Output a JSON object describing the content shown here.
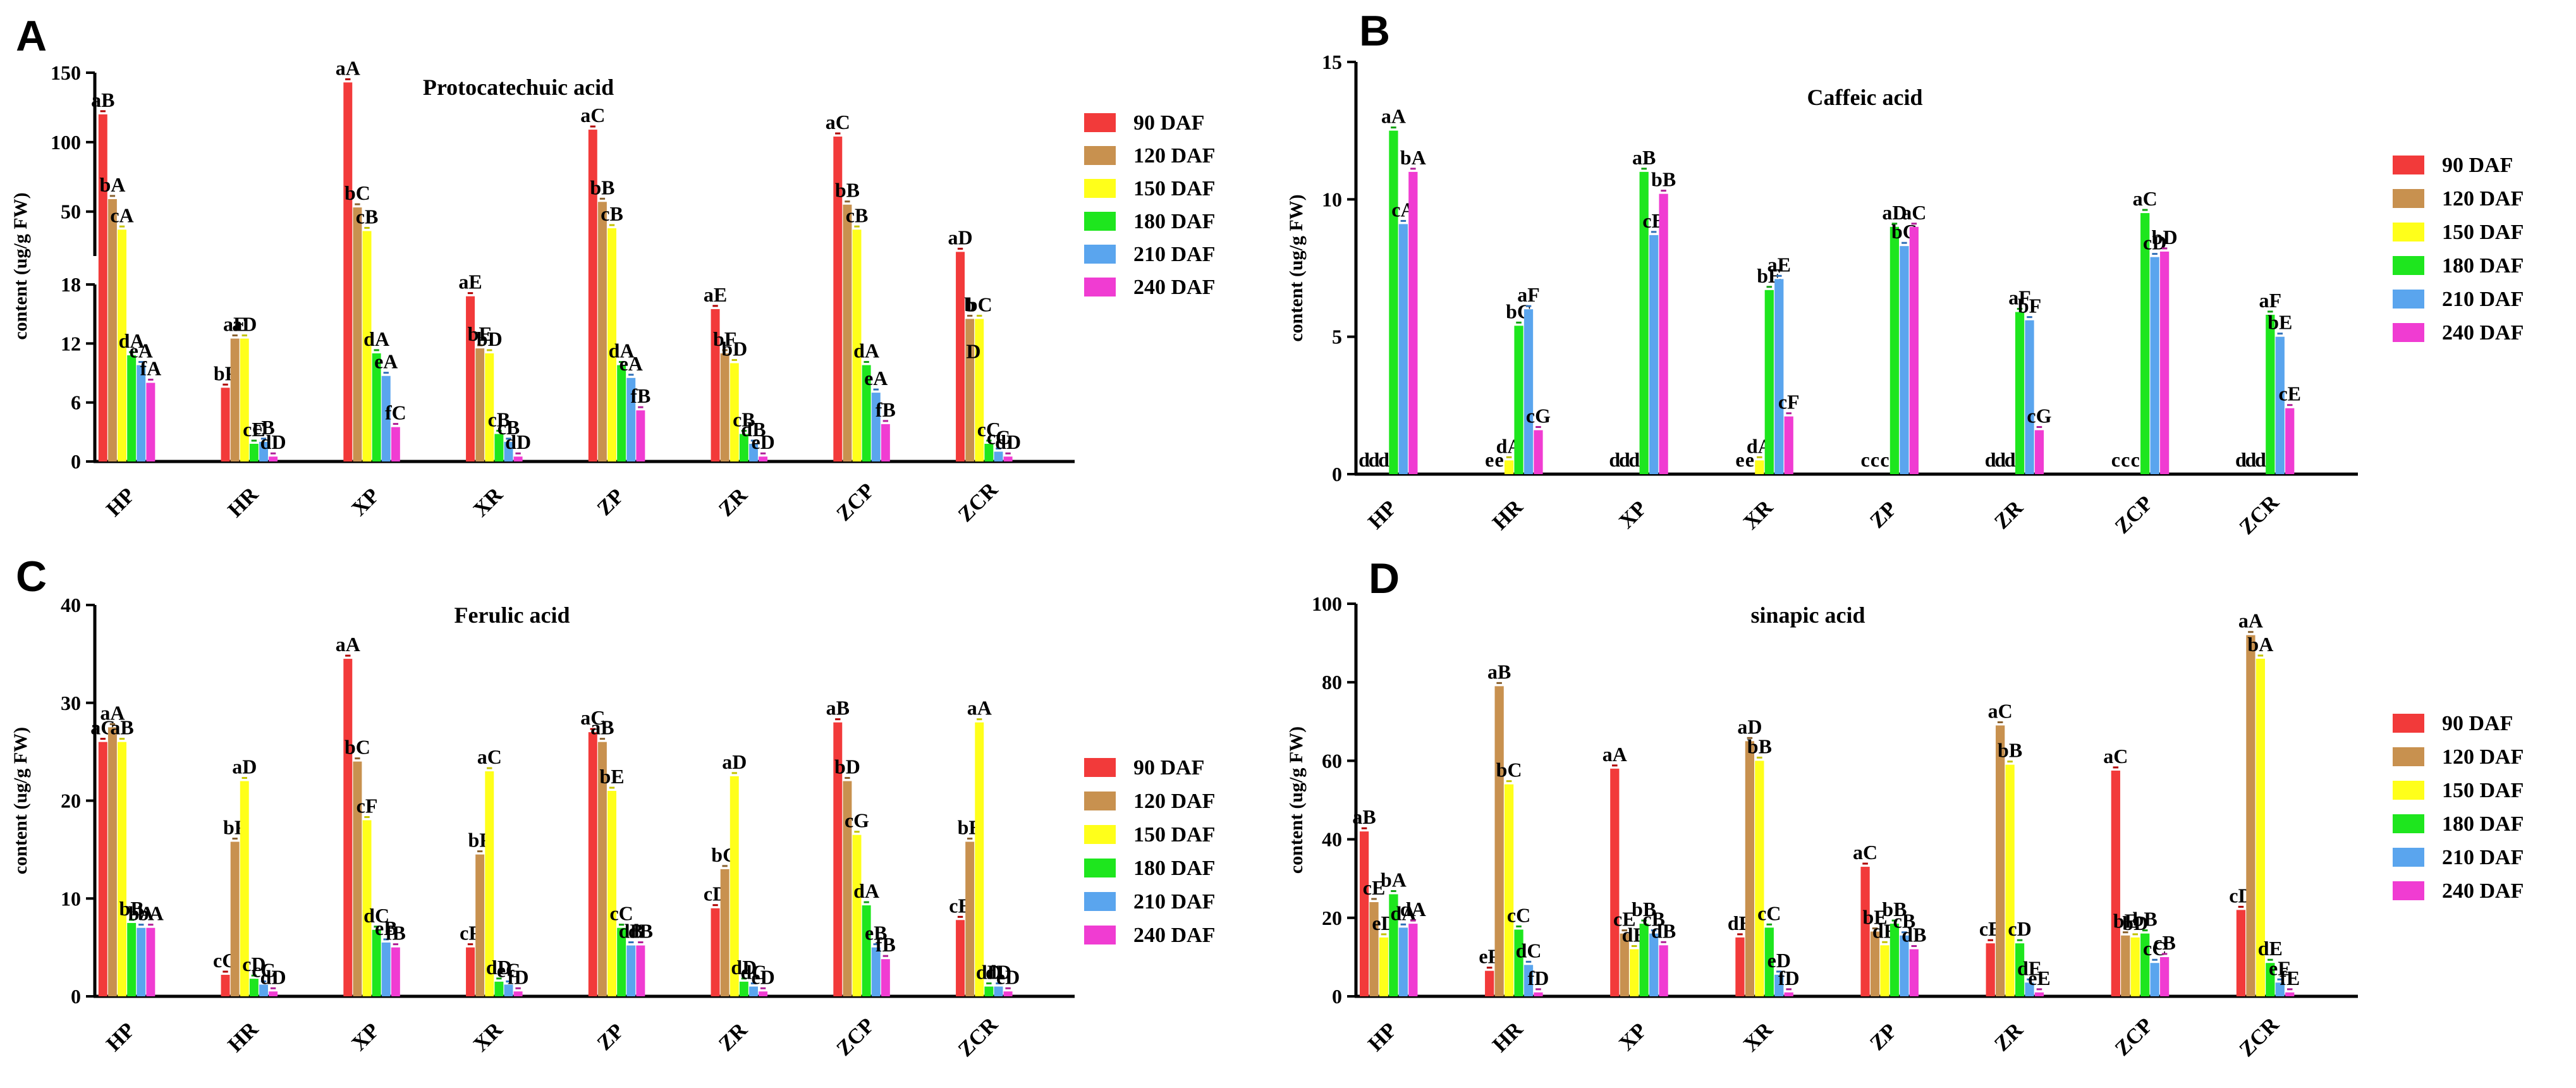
{
  "chart_data": [
    {
      "panel": "A",
      "type": "bar",
      "title": "Protocatechuic acid",
      "ylabel": "content (ug/g FW)",
      "y_axis": "broken",
      "ylim_lower": [
        0,
        18
      ],
      "ylim_upper": [
        18,
        150
      ],
      "yticks_lower": [
        "0",
        "6",
        "12",
        "18"
      ],
      "yticks_upper": [
        "50",
        "100",
        "150"
      ],
      "legend": [
        "90 DAF",
        "120 DAF",
        "150 DAF",
        "180 DAF",
        "210 DAF",
        "240 DAF"
      ],
      "categories": [
        "HP",
        "HR",
        "XP",
        "XR",
        "ZP",
        "ZR",
        "ZCP",
        "ZCR"
      ],
      "series": [
        {
          "name": "90 DAF",
          "values": [
            120,
            7.5,
            143,
            16.8,
            109,
            15.5,
            104,
            21
          ]
        },
        {
          "name": "120 DAF",
          "values": [
            59,
            12.5,
            53,
            11.5,
            57,
            11,
            55,
            14.5
          ]
        },
        {
          "name": "150 DAF",
          "values": [
            37,
            12.5,
            36,
            11,
            38,
            10,
            37,
            14.5
          ]
        },
        {
          "name": "180 DAF",
          "values": [
            10.8,
            1.8,
            11,
            2.8,
            9.8,
            2.8,
            9.8,
            1.8
          ]
        },
        {
          "name": "210 DAF",
          "values": [
            9.8,
            2,
            8.7,
            2,
            8.5,
            1.8,
            7,
            1
          ]
        },
        {
          "name": "240 DAF",
          "values": [
            8,
            0.5,
            3.5,
            0.5,
            5.2,
            0.5,
            3.8,
            0.5
          ]
        }
      ],
      "labels": [
        [
          "aB",
          "bF",
          "aA",
          "aE",
          "aC",
          "aE",
          "aC",
          "aD"
        ],
        [
          "bA",
          "aE",
          "bC",
          "bE",
          "bB",
          "bF",
          "bB",
          "b"
        ],
        [
          "cA",
          "aD",
          "cB",
          "bD",
          "cB",
          "bD",
          "cB",
          "bC"
        ],
        [
          "dA",
          "cE",
          "dA",
          "cB",
          "dA",
          "cB",
          "dA",
          "cC"
        ],
        [
          "eA",
          "cB",
          "eA",
          "cB",
          "eA",
          "dB",
          "eA",
          "cC"
        ],
        [
          "fA",
          "dD",
          "fC",
          "dD",
          "fB",
          "eD",
          "fB",
          "dD"
        ]
      ],
      "extra_labels": [
        {
          "category": "ZCR",
          "text": "D"
        }
      ]
    },
    {
      "panel": "B",
      "type": "bar",
      "title": "Caffeic acid",
      "ylabel": "content (ug/g FW)",
      "ylim": [
        0,
        15
      ],
      "yticks": [
        "0",
        "5",
        "10",
        "15"
      ],
      "legend": [
        "90 DAF",
        "120 DAF",
        "150 DAF",
        "180 DAF",
        "210 DAF",
        "240 DAF"
      ],
      "categories": [
        "HP",
        "HR",
        "XP",
        "XR",
        "ZP",
        "ZR",
        "ZCP",
        "ZCR"
      ],
      "series": [
        {
          "name": "90 DAF",
          "values": [
            0,
            0,
            0,
            0,
            0,
            0,
            0,
            0
          ]
        },
        {
          "name": "120 DAF",
          "values": [
            0,
            0,
            0,
            0,
            0,
            0,
            0,
            0
          ]
        },
        {
          "name": "150 DAF",
          "values": [
            0,
            0.5,
            0,
            0.5,
            0,
            0,
            0,
            0
          ]
        },
        {
          "name": "180 DAF",
          "values": [
            12.5,
            5.4,
            11,
            6.7,
            9,
            5.9,
            9.5,
            5.8
          ]
        },
        {
          "name": "210 DAF",
          "values": [
            9.1,
            6,
            8.7,
            7.1,
            8.3,
            5.6,
            7.9,
            5
          ]
        },
        {
          "name": "240 DAF",
          "values": [
            11,
            1.6,
            10.2,
            2.1,
            9,
            1.6,
            8.1,
            2.4
          ]
        }
      ],
      "labels": [
        [
          "d",
          "e",
          "d",
          "e",
          "c",
          "d",
          "c",
          "d"
        ],
        [
          "d",
          "e",
          "d",
          "e",
          "c",
          "d",
          "c",
          "d"
        ],
        [
          "d",
          "dA",
          "d",
          "dA",
          "c",
          "d",
          "c",
          "d"
        ],
        [
          "aA",
          "bC",
          "aB",
          "bE",
          "aD",
          "aF",
          "aC",
          "aF"
        ],
        [
          "cA",
          "aF",
          "cB",
          "aE",
          "bC",
          "bF",
          "cD",
          "bE"
        ],
        [
          "bA",
          "cG",
          "bB",
          "cF",
          "aC",
          "cG",
          "bD",
          "cE"
        ]
      ]
    },
    {
      "panel": "C",
      "type": "bar",
      "title": "Ferulic acid",
      "ylabel": "content (ug/g FW)",
      "ylim": [
        0,
        40
      ],
      "yticks": [
        "0",
        "10",
        "20",
        "30",
        "40"
      ],
      "legend": [
        "90 DAF",
        "120 DAF",
        "150 DAF",
        "180 DAF",
        "210 DAF",
        "240 DAF"
      ],
      "categories": [
        "HP",
        "HR",
        "XP",
        "XR",
        "ZP",
        "ZR",
        "ZCP",
        "ZCR"
      ],
      "series": [
        {
          "name": "90 DAF",
          "values": [
            26,
            2.2,
            34.5,
            5,
            27,
            9,
            28,
            7.8
          ]
        },
        {
          "name": "120 DAF",
          "values": [
            27.5,
            15.8,
            24,
            14.5,
            26,
            13,
            22,
            15.8
          ]
        },
        {
          "name": "150 DAF",
          "values": [
            26,
            22,
            18,
            23,
            21,
            22.5,
            16.5,
            28
          ]
        },
        {
          "name": "180 DAF",
          "values": [
            7.5,
            1.8,
            6.8,
            1.5,
            7,
            1.5,
            9.3,
            1
          ]
        },
        {
          "name": "210 DAF",
          "values": [
            7,
            1.2,
            5.5,
            1.2,
            5.2,
            1,
            5,
            1
          ]
        },
        {
          "name": "240 DAF",
          "values": [
            7,
            0.5,
            5,
            0.5,
            5.2,
            0.5,
            3.8,
            0.5
          ]
        }
      ],
      "labels": [
        [
          "aC",
          "cG",
          "aA",
          "cF",
          "aC",
          "cD",
          "aB",
          "cE"
        ],
        [
          "aA",
          "bF",
          "bC",
          "bF",
          "aB",
          "bG",
          "bD",
          "bE"
        ],
        [
          "aB",
          "aD",
          "cF",
          "aC",
          "bE",
          "aD",
          "cG",
          "aA"
        ],
        [
          "bB",
          "cD",
          "dC",
          "dD",
          "cC",
          "dD",
          "dA",
          "dD"
        ],
        [
          "bA",
          "cC",
          "eB",
          "eC",
          "dB",
          "dC",
          "eB",
          "dD"
        ],
        [
          "bA",
          "dD",
          "fB",
          "fD",
          "dB",
          "eD",
          "fB",
          "eD"
        ]
      ]
    },
    {
      "panel": "D",
      "type": "bar",
      "title": "sinapic acid",
      "ylabel": "content (ug/g FW)",
      "ylim": [
        0,
        100
      ],
      "yticks": [
        "0",
        "20",
        "40",
        "60",
        "80",
        "100"
      ],
      "legend": [
        "90 DAF",
        "120 DAF",
        "150 DAF",
        "180 DAF",
        "210 DAF",
        "240 DAF"
      ],
      "categories": [
        "HP",
        "HR",
        "XP",
        "XR",
        "ZP",
        "ZR",
        "ZCP",
        "ZCR"
      ],
      "series": [
        {
          "name": "90 DAF",
          "values": [
            42,
            6.5,
            58,
            15,
            33,
            13.5,
            57.5,
            22
          ]
        },
        {
          "name": "120 DAF",
          "values": [
            24,
            79,
            16,
            65,
            16.5,
            69,
            15.5,
            92
          ]
        },
        {
          "name": "150 DAF",
          "values": [
            15,
            54,
            12,
            60,
            13,
            59,
            15,
            86
          ]
        },
        {
          "name": "180 DAF",
          "values": [
            26,
            17,
            18.5,
            17.5,
            18.5,
            13.5,
            16,
            8.5
          ]
        },
        {
          "name": "210 DAF",
          "values": [
            17.5,
            8,
            16,
            5.5,
            15.5,
            3.5,
            8.5,
            3.5
          ]
        },
        {
          "name": "240 DAF",
          "values": [
            18.5,
            1,
            13,
            1,
            12,
            1,
            10,
            1
          ]
        }
      ],
      "labels": [
        [
          "aB",
          "eF",
          "aA",
          "dE",
          "aC",
          "cE",
          "aC",
          "cD"
        ],
        [
          "cE",
          "aB",
          "cE",
          "aD",
          "bE",
          "aC",
          "bE",
          "aA"
        ],
        [
          "eD",
          "bC",
          "dE",
          "bB",
          "dE",
          "bB",
          "bD",
          "bA"
        ],
        [
          "bA",
          "cC",
          "bB",
          "cC",
          "bB",
          "cD",
          "bB",
          "dE"
        ],
        [
          "dA",
          "dC",
          "cB",
          "eD",
          "cB",
          "dE",
          "cC",
          "eE"
        ],
        [
          "dA",
          "fD",
          "dB",
          "fD",
          "dB",
          "eE",
          "cB",
          "fE"
        ]
      ]
    }
  ]
}
